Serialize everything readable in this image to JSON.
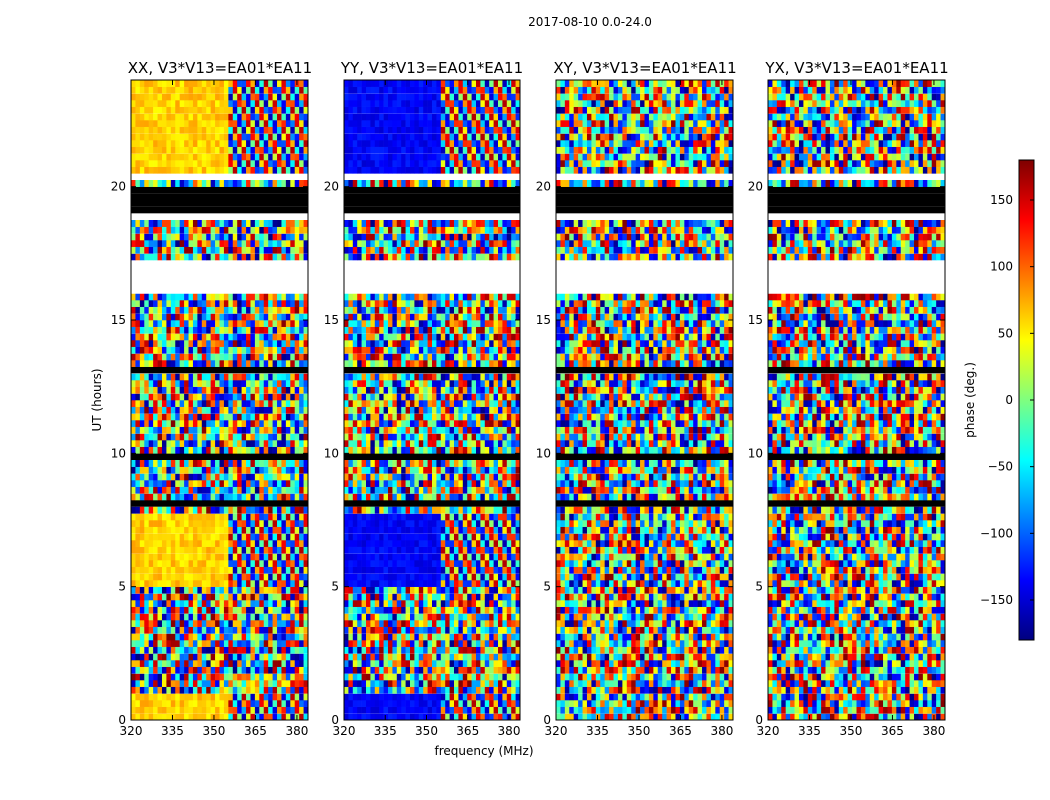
{
  "chart_data": {
    "type": "heatmap",
    "title": "2017-08-10 0.0-24.0",
    "xlabel": "frequency (MHz)",
    "ylabel": "UT (hours)",
    "xlim": [
      320,
      384
    ],
    "ylim": [
      0,
      24
    ],
    "xticks": [
      "320",
      "335",
      "350",
      "365",
      "380"
    ],
    "yticks": [
      "0",
      "5",
      "10",
      "15",
      "20"
    ],
    "panels": [
      {
        "title": "XX, V3*V13=EA01*EA11"
      },
      {
        "title": "YY, V3*V13=EA01*EA11"
      },
      {
        "title": "XY, V3*V13=EA01*EA11"
      },
      {
        "title": "YX, V3*V13=EA01*EA11"
      }
    ],
    "colorbar": {
      "label": "phase (deg.)",
      "colormap": "jet",
      "range": [
        -180,
        180
      ],
      "ticks": [
        "150",
        "100",
        "50",
        "0",
        "−50",
        "−100",
        "−150"
      ]
    },
    "grid": false
  }
}
